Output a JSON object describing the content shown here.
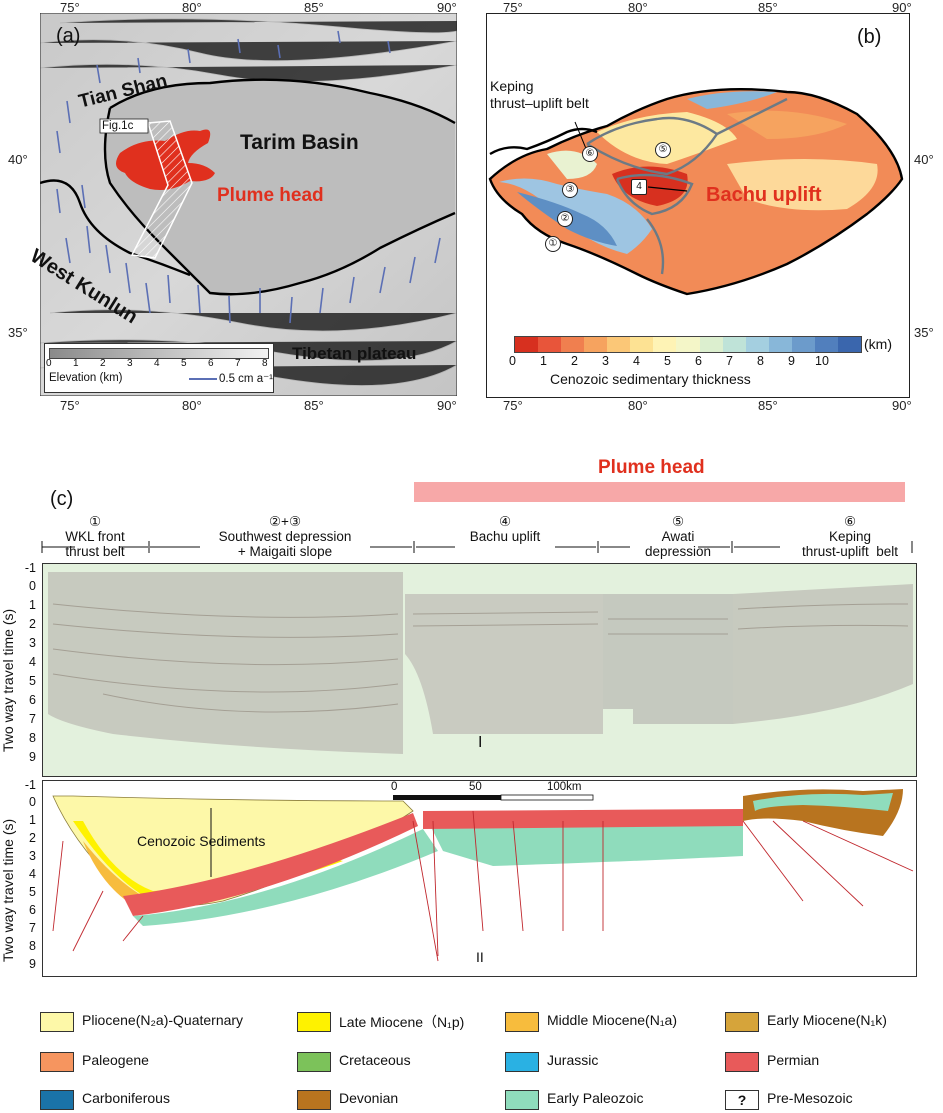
{
  "panel_a": {
    "label": "(a)",
    "lon_ticks": [
      "75°",
      "80°",
      "85°",
      "90°"
    ],
    "lat_ticks": [
      "40°",
      "35°"
    ],
    "places": {
      "tian_shan": "Tian Shan",
      "tarim_basin": "Tarim Basin",
      "plume_head": "Plume head",
      "west_kunlun": "West Kunlun",
      "tibetan_plateau": "Tibetan plateau",
      "fig_ref": "Fig.1c"
    },
    "elevation_scale": {
      "ticks": [
        "0",
        "1",
        "2",
        "3",
        "4",
        "5",
        "6",
        "7",
        "8"
      ],
      "title": "Elevation (km)",
      "vector_label": "0.5 cm a⁻¹"
    }
  },
  "panel_b": {
    "label": "(b)",
    "lon_ticks": [
      "75°",
      "80°",
      "85°",
      "90°"
    ],
    "lat_ticks": [
      "40°",
      "35°"
    ],
    "keping_label": "Keping\nthrust–uplift belt",
    "bachu_label": "Bachu uplift",
    "zone_numbers": [
      "①",
      "②",
      "③",
      "4",
      "⑤",
      "⑥"
    ],
    "colorbar": {
      "ticks": [
        "0",
        "1",
        "2",
        "3",
        "4",
        "5",
        "6",
        "7",
        "8",
        "9",
        "10"
      ],
      "unit": "(km)",
      "title": "Cenozoic sedimentary thickness",
      "colors": [
        "#d7301f",
        "#e8553a",
        "#f07f4f",
        "#f6a35f",
        "#fbc777",
        "#fde293",
        "#fef3b5",
        "#f4f6c8",
        "#dcefcf",
        "#bfe3d8",
        "#a4cfe0",
        "#88b7d9",
        "#6c9bcb",
        "#517fbd",
        "#3a66ad"
      ]
    }
  },
  "panel_c": {
    "label": "(c)",
    "plume_label": "Plume head",
    "segments": [
      {
        "num": "①",
        "name": "WKL front\nthrust belt"
      },
      {
        "num": "②+③",
        "name": "Southwest depression\n+ Maigaiti slope"
      },
      {
        "num": "④",
        "name": "Bachu uplift"
      },
      {
        "num": "⑤",
        "name": "Awati\ndepression"
      },
      {
        "num": "⑥",
        "name": "Keping\nthrust-uplift  belt"
      }
    ],
    "yaxis_title": "Two way travel time (s)",
    "y_ticks": [
      "-1",
      "0",
      "1",
      "2",
      "3",
      "4",
      "5",
      "6",
      "7",
      "8",
      "9"
    ],
    "seismic_label": "I",
    "interpretation_label": "II",
    "cenozoic_label": "Cenozoic Sediments",
    "scale_ticks": [
      "0",
      "50",
      "100km"
    ]
  },
  "legend": [
    {
      "label": "Pliocene(N₂a)-Quaternary",
      "color": "#fdf8a8"
    },
    {
      "label": "Late Miocene（N₁p)",
      "color": "#fef200"
    },
    {
      "label": "Middle Miocene(N₁a)",
      "color": "#f7bc3d"
    },
    {
      "label": "Early Miocene(N₁k)",
      "color": "#d6a43a"
    },
    {
      "label": "Paleogene",
      "color": "#f6955f"
    },
    {
      "label": "Cretaceous",
      "color": "#7cc25a"
    },
    {
      "label": "Jurassic",
      "color": "#2ab1e3"
    },
    {
      "label": "Permian",
      "color": "#e85a5a"
    },
    {
      "label": "Carboniferous",
      "color": "#1a73a8"
    },
    {
      "label": "Devonian",
      "color": "#b8741f"
    },
    {
      "label": "Early Paleozoic",
      "color": "#8fdcbc"
    },
    {
      "label": "Pre-Mesozoic",
      "color": "#ffffff",
      "symbol": "?"
    }
  ]
}
